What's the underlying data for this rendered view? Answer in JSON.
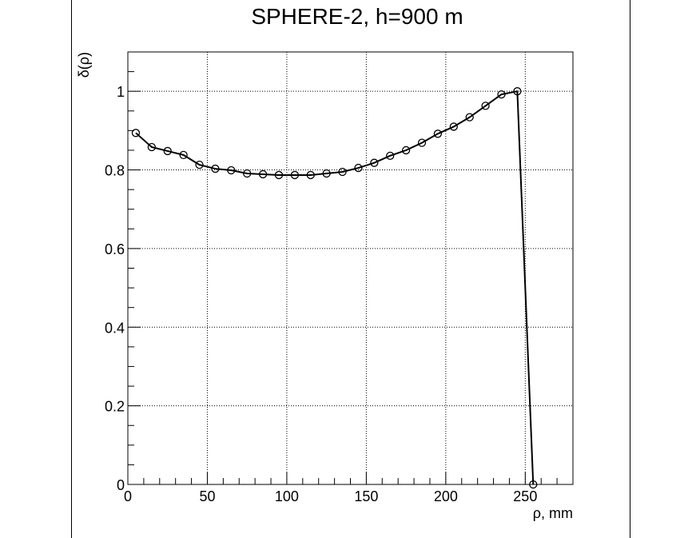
{
  "chart_data": {
    "type": "line",
    "title": "SPHERE-2, h=900 m",
    "xlabel": "ρ, mm",
    "ylabel": "δ(ρ)",
    "xlim": [
      0,
      280
    ],
    "ylim": [
      0,
      1.1
    ],
    "x_ticks": [
      0,
      50,
      100,
      150,
      200,
      250
    ],
    "y_ticks": [
      0,
      0.2,
      0.4,
      0.6,
      0.8,
      1
    ],
    "x_tick_labels": [
      "0",
      "50",
      "100",
      "150",
      "200",
      "250"
    ],
    "y_tick_labels": [
      "0",
      "0.2",
      "0.4",
      "0.6",
      "0.8",
      "1"
    ],
    "grid": true,
    "marker": "open-circle",
    "series": [
      {
        "x": [
          5,
          15,
          25,
          35,
          45,
          55,
          65,
          75,
          85,
          95,
          105,
          115,
          125,
          135,
          145,
          155,
          165,
          175,
          185,
          195,
          205,
          215,
          225,
          235,
          245,
          255
        ],
        "y": [
          0.894,
          0.858,
          0.848,
          0.838,
          0.813,
          0.803,
          0.799,
          0.791,
          0.789,
          0.787,
          0.787,
          0.787,
          0.791,
          0.795,
          0.805,
          0.818,
          0.836,
          0.85,
          0.869,
          0.892,
          0.91,
          0.934,
          0.963,
          0.992,
          1.0,
          0.0
        ]
      }
    ]
  }
}
